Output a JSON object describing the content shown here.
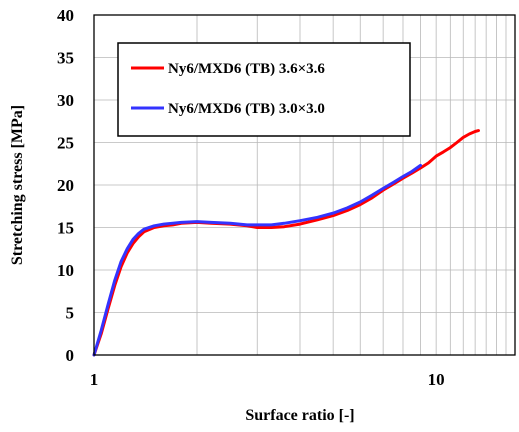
{
  "chart_data": {
    "type": "line",
    "xlabel": "Surface ratio [-]",
    "ylabel": "Stretching stress [MPa]",
    "xscale": "log",
    "xlim": [
      1,
      17
    ],
    "ylim": [
      0,
      40
    ],
    "x_ticks": [
      1,
      10
    ],
    "x_tick_labels": [
      "1",
      "10"
    ],
    "y_ticks": [
      0,
      5,
      10,
      15,
      20,
      25,
      30,
      35,
      40
    ],
    "y_tick_labels": [
      "0",
      "5",
      "10",
      "15",
      "20",
      "25",
      "30",
      "35",
      "40"
    ],
    "grid": true,
    "legend_position": "top-left",
    "series": [
      {
        "name": "Ny6/MXD6 (TB) 3.6×3.6",
        "color": "#ff0000",
        "points": [
          [
            1.0,
            0
          ],
          [
            1.05,
            2.5
          ],
          [
            1.1,
            5.5
          ],
          [
            1.15,
            8.2
          ],
          [
            1.2,
            10.4
          ],
          [
            1.25,
            12.0
          ],
          [
            1.3,
            13.1
          ],
          [
            1.35,
            13.9
          ],
          [
            1.4,
            14.5
          ],
          [
            1.5,
            15.0
          ],
          [
            1.6,
            15.2
          ],
          [
            1.7,
            15.3
          ],
          [
            1.8,
            15.5
          ],
          [
            2.0,
            15.6
          ],
          [
            2.2,
            15.5
          ],
          [
            2.5,
            15.4
          ],
          [
            2.8,
            15.2
          ],
          [
            3.0,
            15.0
          ],
          [
            3.3,
            15.0
          ],
          [
            3.6,
            15.1
          ],
          [
            4.0,
            15.4
          ],
          [
            4.5,
            15.9
          ],
          [
            5.0,
            16.4
          ],
          [
            5.5,
            17.0
          ],
          [
            6.0,
            17.7
          ],
          [
            6.5,
            18.5
          ],
          [
            7.0,
            19.4
          ],
          [
            7.5,
            20.1
          ],
          [
            8.0,
            20.8
          ],
          [
            8.5,
            21.4
          ],
          [
            9.0,
            22.0
          ],
          [
            9.5,
            22.6
          ],
          [
            10.0,
            23.4
          ],
          [
            10.5,
            23.9
          ],
          [
            11.0,
            24.4
          ],
          [
            11.5,
            25.0
          ],
          [
            12.0,
            25.6
          ],
          [
            12.5,
            26.0
          ],
          [
            13.0,
            26.3
          ],
          [
            13.3,
            26.4
          ]
        ]
      },
      {
        "name": "Ny6/MXD6 (TB) 3.0×3.0",
        "color": "#3333ff",
        "points": [
          [
            1.0,
            0
          ],
          [
            1.05,
            2.9
          ],
          [
            1.1,
            6.0
          ],
          [
            1.15,
            8.8
          ],
          [
            1.2,
            11.0
          ],
          [
            1.25,
            12.5
          ],
          [
            1.3,
            13.6
          ],
          [
            1.35,
            14.3
          ],
          [
            1.4,
            14.8
          ],
          [
            1.5,
            15.2
          ],
          [
            1.6,
            15.4
          ],
          [
            1.7,
            15.5
          ],
          [
            1.8,
            15.6
          ],
          [
            2.0,
            15.7
          ],
          [
            2.2,
            15.6
          ],
          [
            2.5,
            15.5
          ],
          [
            2.8,
            15.3
          ],
          [
            3.0,
            15.3
          ],
          [
            3.3,
            15.3
          ],
          [
            3.6,
            15.5
          ],
          [
            4.0,
            15.8
          ],
          [
            4.5,
            16.2
          ],
          [
            5.0,
            16.7
          ],
          [
            5.5,
            17.3
          ],
          [
            6.0,
            18.0
          ],
          [
            6.5,
            18.8
          ],
          [
            7.0,
            19.6
          ],
          [
            7.5,
            20.3
          ],
          [
            8.0,
            21.0
          ],
          [
            8.5,
            21.6
          ],
          [
            9.0,
            22.3
          ]
        ]
      }
    ]
  }
}
